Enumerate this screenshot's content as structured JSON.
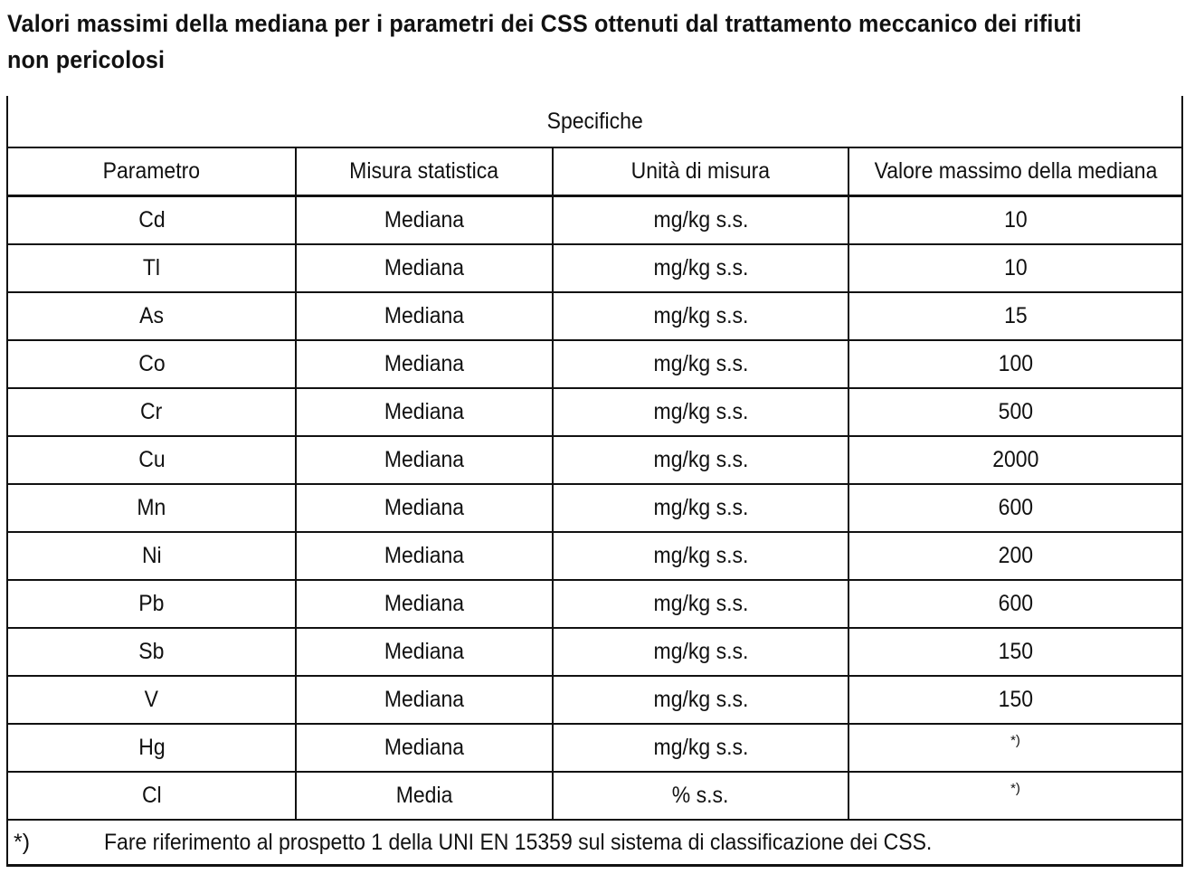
{
  "title": {
    "line1": "Valori massimi della mediana per i parametri dei CSS ottenuti dal trattamento meccanico dei rifiuti",
    "line2": "non pericolosi"
  },
  "table": {
    "group_header": "Specifiche",
    "columns": [
      "Parametro",
      "Misura statistica",
      "Unità di misura",
      "Valore massimo della mediana"
    ],
    "rows": [
      {
        "parametro": "Cd",
        "misura": "Mediana",
        "unita": "mg/kg s.s.",
        "valore": "10"
      },
      {
        "parametro": "Tl",
        "misura": "Mediana",
        "unita": "mg/kg s.s.",
        "valore": "10"
      },
      {
        "parametro": "As",
        "misura": "Mediana",
        "unita": "mg/kg s.s.",
        "valore": "15"
      },
      {
        "parametro": "Co",
        "misura": "Mediana",
        "unita": "mg/kg s.s.",
        "valore": "100"
      },
      {
        "parametro": "Cr",
        "misura": "Mediana",
        "unita": "mg/kg s.s.",
        "valore": "500"
      },
      {
        "parametro": "Cu",
        "misura": "Mediana",
        "unita": "mg/kg s.s.",
        "valore": "2000"
      },
      {
        "parametro": "Mn",
        "misura": "Mediana",
        "unita": "mg/kg s.s.",
        "valore": "600"
      },
      {
        "parametro": "Ni",
        "misura": "Mediana",
        "unita": "mg/kg s.s.",
        "valore": "200"
      },
      {
        "parametro": "Pb",
        "misura": "Mediana",
        "unita": "mg/kg s.s.",
        "valore": "600"
      },
      {
        "parametro": "Sb",
        "misura": "Mediana",
        "unita": "mg/kg s.s.",
        "valore": "150"
      },
      {
        "parametro": "V",
        "misura": "Mediana",
        "unita": "mg/kg s.s.",
        "valore": "150"
      },
      {
        "parametro": "Hg",
        "misura": "Mediana",
        "unita": "mg/kg s.s.",
        "valore": "*)"
      },
      {
        "parametro": "Cl",
        "misura": "Media",
        "unita": "% s.s.",
        "valore": "*)"
      }
    ],
    "footnote": {
      "mark": "*)",
      "text": "Fare riferimento al prospetto 1 della UNI EN 15359 sul sistema di classificazione dei CSS."
    }
  }
}
